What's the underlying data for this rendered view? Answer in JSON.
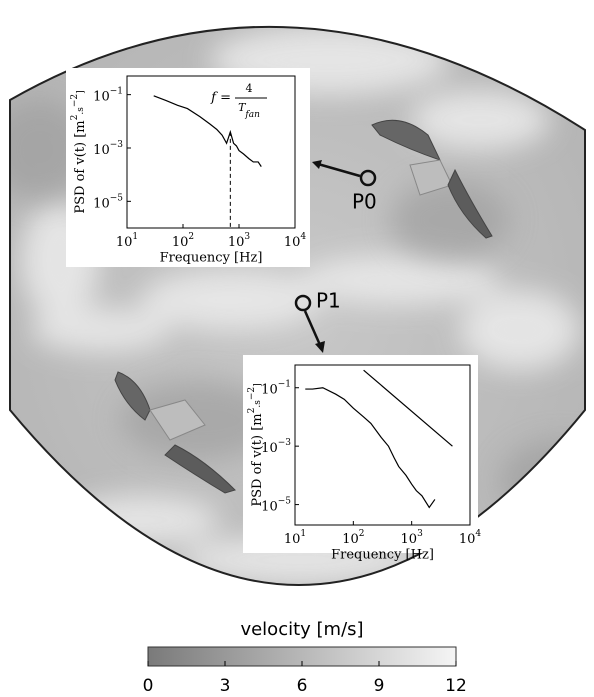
{
  "probes": [
    "P0",
    "P1"
  ],
  "chart_data": [
    {
      "type": "psd",
      "xlabel": "Frequency [Hz]",
      "ylabel": {
        "text": "PSD of v(t) [m",
        "sup1": "2",
        "mid": ".s",
        "sup2": "−2",
        "end": "]"
      },
      "xscale": "log",
      "yscale": "log",
      "xlim": [
        10,
        10000
      ],
      "ylim": [
        1e-06,
        0.5
      ],
      "xticks": [
        {
          "value": 10,
          "label": "10",
          "exponent": "1"
        },
        {
          "value": 100,
          "label": "10",
          "exponent": "2"
        },
        {
          "value": 1000,
          "label": "10",
          "exponent": "3"
        },
        {
          "value": 10000,
          "label": "10",
          "exponent": "4"
        }
      ],
      "yticks": [
        {
          "value": 1e-05,
          "label": "10",
          "exponent": "−5"
        },
        {
          "value": 0.001,
          "label": "10",
          "exponent": "−3"
        },
        {
          "value": 0.1,
          "label": "10",
          "exponent": "−1"
        }
      ],
      "series": [
        {
          "color": "#000000",
          "x": [
            30,
            50,
            80,
            120,
            200,
            300,
            400,
            500,
            600,
            700,
            800,
            900,
            1000,
            1200,
            1500,
            1800,
            2200,
            2500
          ],
          "values": [
            0.09,
            0.06,
            0.04,
            0.03,
            0.015,
            0.008,
            0.005,
            0.003,
            0.0015,
            0.004,
            0.0015,
            0.0012,
            0.0008,
            0.0006,
            0.0004,
            0.0003,
            0.0003,
            0.0002
          ]
        }
      ],
      "vline": 700,
      "annotation": {
        "lhs": "f =",
        "numerator": "4",
        "denominator": "T",
        "subscript": "fan"
      }
    },
    {
      "type": "psd",
      "xlabel": "Frequency [Hz]",
      "ylabel": {
        "text": "PSD of v(t) [m",
        "sup1": "2",
        "mid": ".s",
        "sup2": "−2",
        "end": "]"
      },
      "xscale": "log",
      "yscale": "log",
      "xlim": [
        10,
        10000
      ],
      "ylim": [
        2e-06,
        0.6
      ],
      "xticks": [
        {
          "value": 10,
          "label": "10",
          "exponent": "1"
        },
        {
          "value": 100,
          "label": "10",
          "exponent": "2"
        },
        {
          "value": 1000,
          "label": "10",
          "exponent": "3"
        },
        {
          "value": 10000,
          "label": "10",
          "exponent": "4"
        }
      ],
      "yticks": [
        {
          "value": 1e-05,
          "label": "10",
          "exponent": "−5"
        },
        {
          "value": 0.001,
          "label": "10",
          "exponent": "−3"
        },
        {
          "value": 0.1,
          "label": "10",
          "exponent": "−1"
        }
      ],
      "series": [
        {
          "color": "#000000",
          "x": [
            15,
            20,
            30,
            50,
            70,
            100,
            150,
            200,
            300,
            400,
            500,
            600,
            800,
            1000,
            1200,
            1500,
            2000,
            2500
          ],
          "values": [
            0.09,
            0.09,
            0.1,
            0.06,
            0.04,
            0.02,
            0.01,
            0.006,
            0.002,
            0.001,
            0.0004,
            0.0002,
            0.0001,
            5e-05,
            3e-05,
            2e-05,
            8e-06,
            1.5e-05
          ]
        },
        {
          "color": "#000000",
          "x": [
            150,
            5000
          ],
          "values": [
            0.4,
            0.001
          ]
        }
      ]
    },
    {
      "type": "colorbar",
      "title": "velocity [m/s]",
      "xlim": [
        0,
        12
      ],
      "xticks": [
        0,
        3,
        6,
        9,
        12
      ],
      "colors": [
        "#7a7a7a",
        "#f5f5f5"
      ]
    }
  ]
}
